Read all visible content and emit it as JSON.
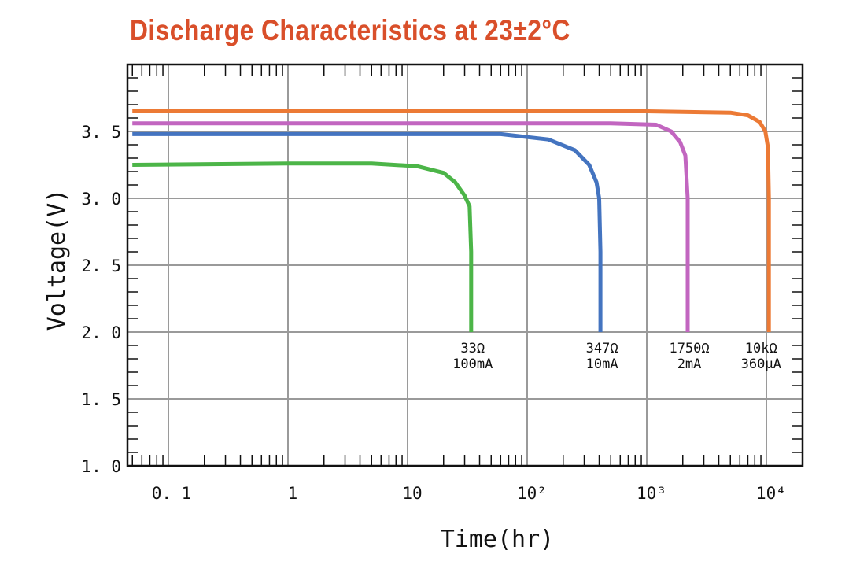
{
  "chart_data": {
    "type": "line",
    "title": "Discharge Characteristics at 23±2°C",
    "xlabel": "Time(hr)",
    "ylabel": "Voltage(V)",
    "x_scale": "log",
    "xlim": [
      0.045,
      20000
    ],
    "ylim": [
      1.0,
      4.0
    ],
    "grid": true,
    "x_ticks": [
      0.1,
      1,
      10,
      100,
      1000,
      10000
    ],
    "x_tick_labels": [
      "0. 1",
      "1",
      "10",
      "10²",
      "10³",
      "10⁴"
    ],
    "y_ticks": [
      1.0,
      1.5,
      2.0,
      2.5,
      3.0,
      3.5
    ],
    "y_tick_labels": [
      "1. 0",
      "1. 5",
      "2. 0",
      "2. 5",
      "3. 0",
      "3. 5"
    ],
    "series": [
      {
        "color": "#4cb548",
        "label_lines": [
          "33Ω",
          "100mA"
        ],
        "x": [
          0.05,
          1,
          5,
          12,
          20,
          25,
          30,
          33,
          34,
          34
        ],
        "y": [
          3.25,
          3.26,
          3.26,
          3.24,
          3.19,
          3.12,
          3.02,
          2.94,
          2.6,
          2.0
        ]
      },
      {
        "color": "#4474c0",
        "label_lines": [
          "347Ω",
          "10mA"
        ],
        "x": [
          0.05,
          1,
          10,
          60,
          150,
          250,
          330,
          380,
          400,
          410,
          410
        ],
        "y": [
          3.48,
          3.48,
          3.48,
          3.48,
          3.44,
          3.36,
          3.25,
          3.12,
          3.0,
          2.6,
          2.0
        ]
      },
      {
        "color": "#c266c0",
        "label_lines": [
          "1750Ω",
          "2mA"
        ],
        "x": [
          0.05,
          10,
          500,
          1200,
          1600,
          1900,
          2100,
          2200,
          2200
        ],
        "y": [
          3.56,
          3.56,
          3.56,
          3.55,
          3.5,
          3.42,
          3.32,
          3.0,
          2.0
        ]
      },
      {
        "color": "#ec7a35",
        "label_lines": [
          "10kΩ",
          "360μA"
        ],
        "x": [
          0.05,
          10,
          1000,
          5000,
          7000,
          8800,
          9800,
          10300,
          10500,
          10500
        ],
        "y": [
          3.65,
          3.65,
          3.65,
          3.64,
          3.62,
          3.57,
          3.5,
          3.38,
          3.0,
          2.0
        ]
      }
    ]
  }
}
